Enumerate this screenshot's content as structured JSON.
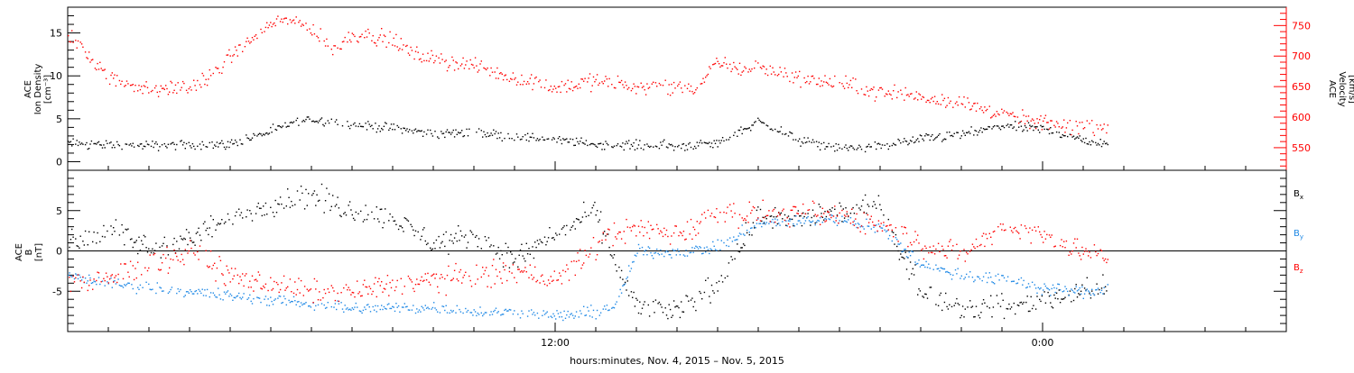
{
  "chart_data": [
    {
      "type": "scatter",
      "panel": "ion-density-velocity",
      "ylabel_lines": [
        "ACE",
        "Ion Density",
        "[cm⁻³]"
      ],
      "y2label_lines": [
        "ACE",
        "Velocity",
        "[km/s]"
      ],
      "ylim": [
        -1,
        18
      ],
      "y2lim": [
        513,
        780
      ],
      "yticks": [
        0,
        5,
        10,
        15
      ],
      "y2ticks": [
        550,
        600,
        650,
        700,
        750
      ],
      "colors": {
        "density": "#000000",
        "velocity": "#ff0000"
      },
      "series": [
        {
          "key": "density",
          "axis": "left",
          "hours": [
            0,
            2,
            4,
            5,
            5.5,
            6,
            7,
            8,
            9,
            10,
            11,
            12,
            13,
            14,
            15,
            16,
            17,
            18,
            19,
            20,
            21,
            22,
            23,
            24,
            25,
            25.6
          ],
          "values": [
            2.2,
            1.9,
            2.1,
            3.6,
            4.6,
            5.0,
            4.4,
            4.0,
            3.3,
            3.5,
            3.0,
            2.6,
            2.1,
            2.0,
            1.9,
            2.2,
            4.8,
            2.5,
            1.6,
            1.9,
            2.7,
            3.2,
            4.2,
            3.9,
            2.6,
            2.0
          ],
          "scatter": 0.6
        },
        {
          "key": "velocity",
          "axis": "right",
          "hours": [
            0,
            0.6,
            1,
            2,
            3,
            3.5,
            4,
            5,
            5.5,
            6,
            6.5,
            7,
            7.5,
            8,
            8.5,
            9,
            10,
            11,
            12,
            13,
            14,
            14.5,
            15,
            15.5,
            16,
            16.5,
            17,
            18,
            19,
            20,
            21,
            22,
            23,
            24,
            25,
            25.6
          ],
          "values": [
            735,
            700,
            665,
            645,
            650,
            665,
            700,
            755,
            760,
            745,
            710,
            735,
            735,
            725,
            705,
            695,
            685,
            665,
            650,
            660,
            652,
            650,
            652,
            648,
            690,
            680,
            682,
            665,
            655,
            642,
            635,
            625,
            605,
            590,
            585,
            585
          ],
          "scatter": 14
        }
      ]
    },
    {
      "type": "scatter",
      "panel": "magnetic-field",
      "ylabel_lines": [
        "ACE",
        "B",
        "[nT]"
      ],
      "ylim": [
        -10,
        10
      ],
      "yticks": [
        -5,
        0,
        5
      ],
      "zero_line": true,
      "legend": [
        {
          "key": "bx",
          "label": "B",
          "sub": "x",
          "color": "#000000"
        },
        {
          "key": "by",
          "label": "B",
          "sub": "y",
          "color": "#1e88e5"
        },
        {
          "key": "bz",
          "label": "B",
          "sub": "z",
          "color": "#ff0000"
        }
      ],
      "series": [
        {
          "key": "bx",
          "hours": [
            0,
            1,
            2,
            3,
            4,
            5,
            6,
            7,
            8,
            9,
            10,
            11,
            12,
            13,
            13.5,
            14,
            15,
            16,
            17,
            18,
            19,
            20,
            21,
            22,
            23,
            24,
            25,
            25.6
          ],
          "values": [
            1,
            2.5,
            0.5,
            1.5,
            4,
            6,
            7,
            5,
            4,
            1,
            2,
            -1,
            2,
            5,
            -2,
            -7,
            -7.5,
            -4,
            4.5,
            4,
            5,
            5.5,
            -5,
            -7,
            -7,
            -6,
            -5,
            -4.5
          ],
          "scatter": 1.6
        },
        {
          "key": "by",
          "hours": [
            0,
            1,
            2,
            3,
            4,
            5,
            6,
            7,
            8,
            9,
            10,
            11,
            12,
            13,
            13.5,
            14,
            15,
            16,
            17,
            18,
            19,
            20,
            21,
            22,
            23,
            24,
            25,
            25.6
          ],
          "values": [
            -3,
            -4,
            -4.5,
            -5,
            -5.5,
            -6,
            -6.5,
            -7,
            -7,
            -7,
            -7.5,
            -7.5,
            -8,
            -7.5,
            -6.5,
            0,
            0,
            0.5,
            3.5,
            3.8,
            4,
            3,
            -1.5,
            -3,
            -3.5,
            -4.5,
            -5,
            -4.5
          ],
          "scatter": 0.8
        },
        {
          "key": "bz",
          "hours": [
            0,
            1,
            2,
            3,
            4,
            5,
            6,
            7,
            8,
            9,
            10,
            11,
            12,
            13,
            13.5,
            14,
            15,
            16,
            17,
            18,
            19,
            20,
            21,
            22,
            23,
            24,
            25,
            25.6
          ],
          "values": [
            -4,
            -3.5,
            -1.5,
            0,
            -3,
            -4,
            -5,
            -5,
            -4,
            -3.5,
            -3,
            -2.5,
            -3.5,
            0.5,
            2.5,
            3,
            2,
            5,
            4.5,
            4.5,
            4.5,
            3.5,
            1,
            -0.5,
            3,
            2,
            0,
            -1
          ],
          "scatter": 1.6
        }
      ]
    }
  ],
  "axis": {
    "time_start_hours": 0,
    "time_end_hours": 30,
    "major_ticks": [
      {
        "hour": 12,
        "label": "12:00"
      },
      {
        "hour": 24,
        "label": "0:00"
      }
    ],
    "minor_tick_hours": [
      1,
      2,
      3,
      4,
      5,
      6,
      7,
      8,
      9,
      10,
      11,
      13,
      14,
      15,
      16,
      17,
      18,
      19,
      20,
      21,
      22,
      23,
      25,
      26,
      27,
      28,
      29
    ],
    "xlabel": "hours:minutes, Nov.  4, 2015 – Nov.  5, 2015"
  }
}
